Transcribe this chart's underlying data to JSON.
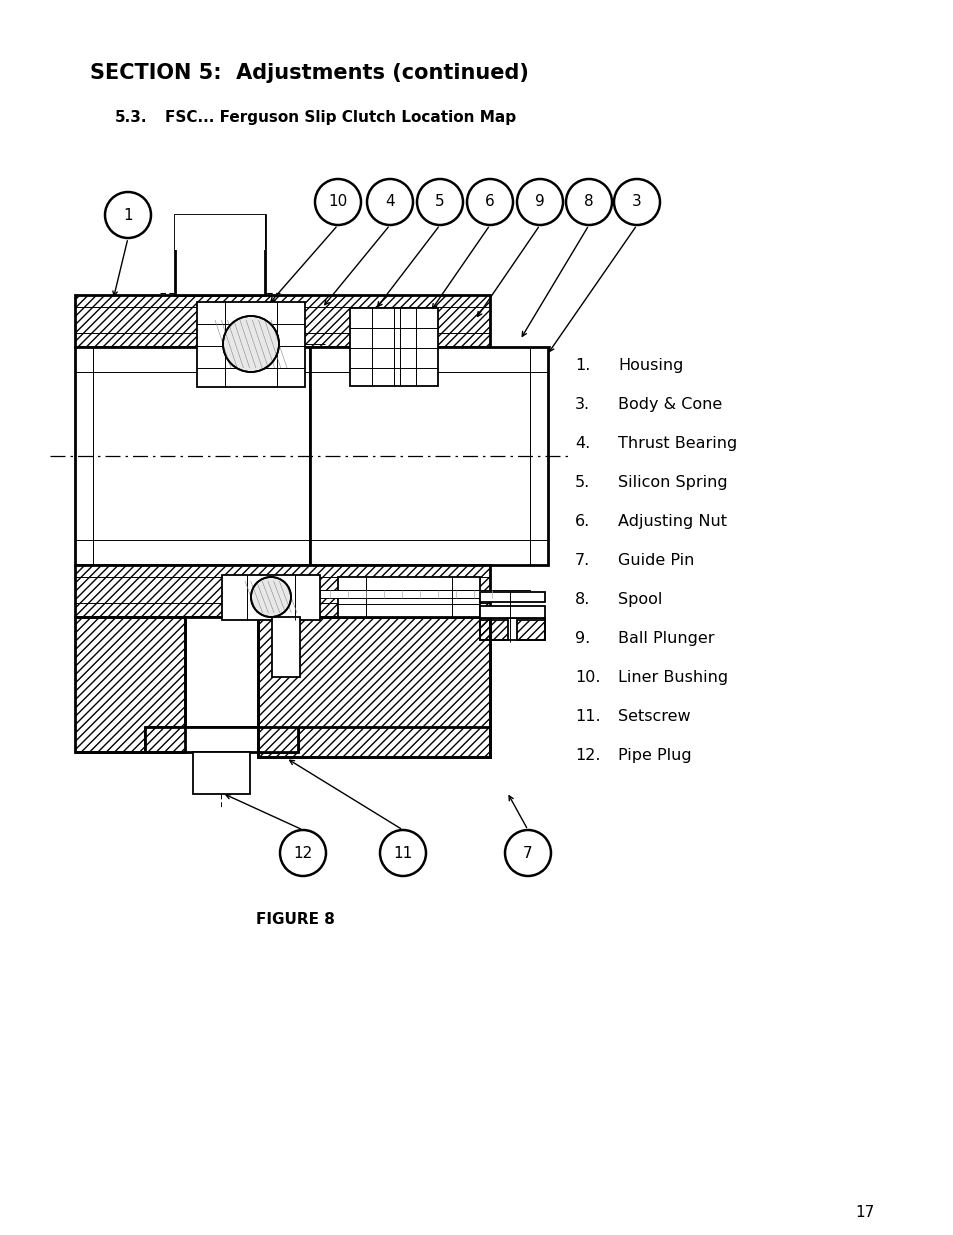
{
  "title": "SECTION 5:  Adjustments (continued)",
  "subtitle_num": "5.3.",
  "subtitle_text": "FSC... Ferguson Slip Clutch Location Map",
  "figure_label": "FIGURE 8",
  "page_number": "17",
  "legend_items": [
    {
      "num": "1.",
      "text": "Housing"
    },
    {
      "num": "3.",
      "text": "Body & Cone"
    },
    {
      "num": "4.",
      "text": "Thrust Bearing"
    },
    {
      "num": "5.",
      "text": "Silicon Spring"
    },
    {
      "num": "6.",
      "text": "Adjusting Nut"
    },
    {
      "num": "7.",
      "text": "Guide Pin"
    },
    {
      "num": "8.",
      "text": "Spool"
    },
    {
      "num": "9.",
      "text": "Ball Plunger"
    },
    {
      "num": "10.",
      "text": "Liner Bushing"
    },
    {
      "num": "11.",
      "text": "Setscrew"
    },
    {
      "num": "12.",
      "text": "Pipe Plug"
    }
  ],
  "bg_color": "#ffffff",
  "text_color": "#000000",
  "title_fontsize": 15,
  "subtitle_fontsize": 11,
  "legend_fontsize": 11.5,
  "figure_label_fontsize": 11
}
